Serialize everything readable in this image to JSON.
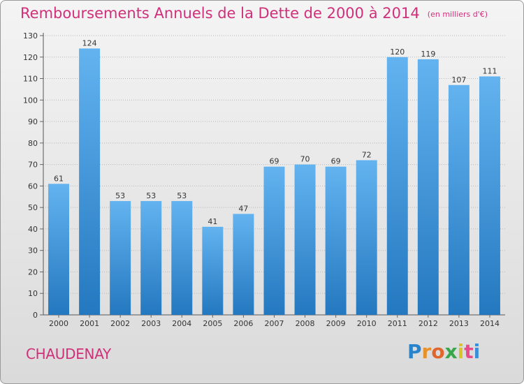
{
  "header": {
    "title": "Remboursements Annuels de la Dette de 2000 à 2014",
    "unit_note": "(en milliers d'€)"
  },
  "footer": {
    "commune": "CHAUDENAY",
    "brand": "Proxiti"
  },
  "colors": {
    "title": "#d0307a",
    "bar_top": "#63b3f0",
    "bar_bottom": "#2478bf",
    "grid": "#b8b8b8"
  },
  "chart_data": {
    "type": "bar",
    "categories": [
      "2000",
      "2001",
      "2002",
      "2003",
      "2004",
      "2005",
      "2006",
      "2007",
      "2008",
      "2009",
      "2010",
      "2011",
      "2012",
      "2013",
      "2014"
    ],
    "values": [
      61,
      124,
      53,
      53,
      53,
      41,
      47,
      69,
      70,
      69,
      72,
      120,
      119,
      107,
      111
    ],
    "ylim": [
      0,
      130
    ],
    "yticks": [
      0,
      10,
      20,
      30,
      40,
      50,
      60,
      70,
      80,
      90,
      100,
      110,
      120,
      130
    ],
    "grid": true,
    "data_labels": true,
    "xlabel": "",
    "ylabel": ""
  }
}
